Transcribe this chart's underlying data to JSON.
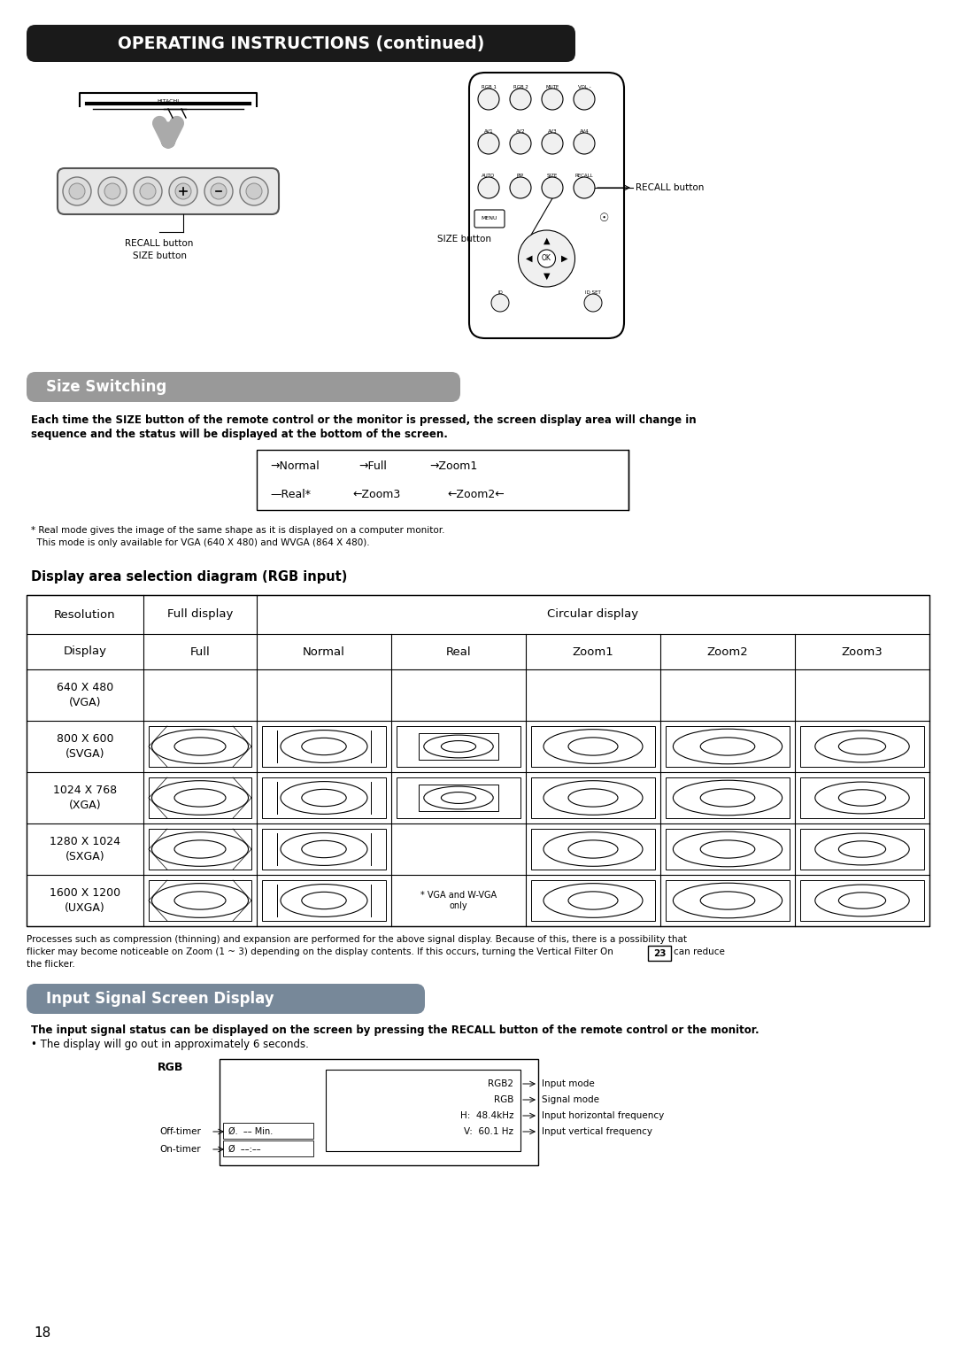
{
  "title": "OPERATING INSTRUCTIONS (continued)",
  "title_bg": "#1a1a1a",
  "title_color": "#ffffff",
  "size_switching_title": "Size Switching",
  "size_switching_bg": "#999999",
  "input_signal_title": "Input Signal Screen Display",
  "input_signal_bg": "#778899",
  "page_number": "18",
  "size_switching_desc1": "Each time the SIZE button of the remote control or the monitor is pressed, the screen display area will change in",
  "size_switching_desc2": "sequence and the status will be displayed at the bottom of the screen.",
  "footnote1": "* Real mode gives the image of the same shape as it is displayed on a computer monitor.",
  "footnote2": "  This mode is only available for VGA (640 X 480) and WVGA (864 X 480).",
  "table_title": "Display area selection diagram (RGB input)",
  "col_headers": [
    "Display",
    "Full",
    "Normal",
    "Real",
    "Zoom1",
    "Zoom2",
    "Zoom3"
  ],
  "res_labels": [
    "640 X 480\n(VGA)",
    "800 X 600\n(SVGA)",
    "1024 X 768\n(XGA)",
    "1280 X 1024\n(SXGA)",
    "1600 X 1200\n(UXGA)"
  ],
  "note_vga": "* VGA and W-VGA\nonly",
  "flicker1": "Processes such as compression (thinning) and expansion are performed for the above signal display. Because of this, there is a possibility that",
  "flicker2": "flicker may become noticeable on Zoom (1 ~ 3) depending on the display contents. If this occurs, turning the Vertical Filter On",
  "flicker3": "can reduce",
  "flicker4": "the flicker.",
  "page_ref": "23",
  "input_desc1": "The input signal status can be displayed on the screen by pressing the RECALL button of the remote control or the monitor.",
  "input_desc2": "• The display will go out in approximately 6 seconds.",
  "sig_lines": [
    "RGB2",
    "RGB",
    "H:  48.4kHz",
    "V:  60.1 Hz"
  ],
  "sig_labels": [
    "Input mode",
    "Signal mode",
    "Input horizontal frequency",
    "Input vertical frequency"
  ]
}
